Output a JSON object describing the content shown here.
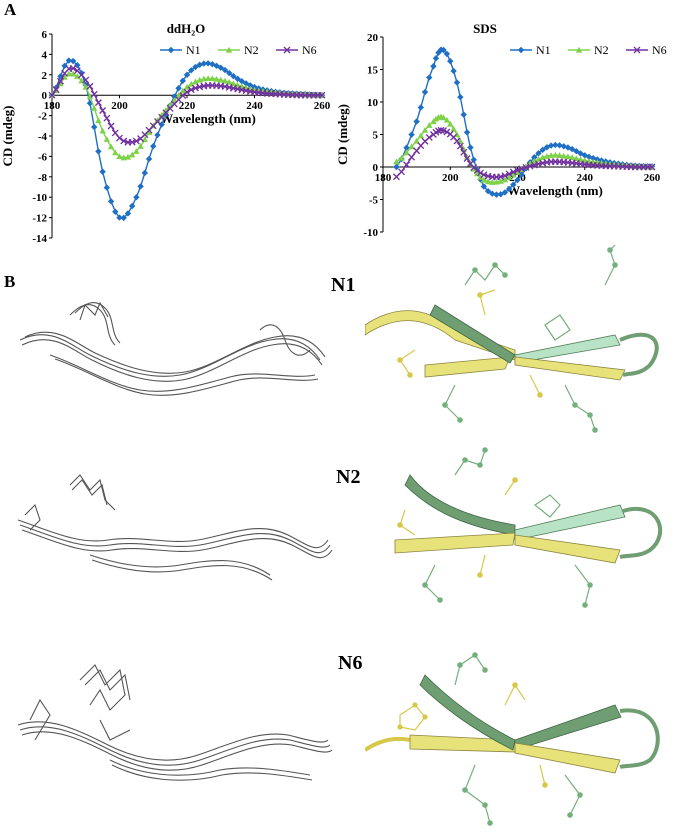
{
  "panels": {
    "a": "A",
    "b": "B"
  },
  "chart_data": [
    {
      "type": "line",
      "title": "ddH₂O",
      "xlabel": "Wavelength (nm)",
      "ylabel": "CD (mdeg)",
      "xlim": [
        180,
        260
      ],
      "ylim": [
        -14,
        6
      ],
      "xticks": [
        "180",
        "200",
        "220",
        "240",
        "260"
      ],
      "yticks": [
        "-14",
        "-12",
        "-10",
        "-8",
        "-6",
        "-4",
        "-2",
        "0",
        "2",
        "4",
        "6"
      ],
      "legend": "top-right",
      "series": [
        {
          "name": "N1",
          "color": "#1f6fc5",
          "marker": "diamond",
          "x": [
            180,
            185,
            190,
            195,
            200,
            205,
            210,
            215,
            220,
            225,
            230,
            235,
            240,
            245,
            250,
            255,
            260
          ],
          "y": [
            0,
            3.4,
            1.0,
            -7.5,
            -12.0,
            -10.0,
            -5.0,
            -1.0,
            2.0,
            3.1,
            2.7,
            1.6,
            0.8,
            0.4,
            0.2,
            0.1,
            0
          ]
        },
        {
          "name": "N2",
          "color": "#7ed24a",
          "marker": "triangle",
          "x": [
            180,
            185,
            190,
            195,
            200,
            205,
            210,
            215,
            220,
            225,
            230,
            235,
            240,
            245,
            250,
            255,
            260
          ],
          "y": [
            0,
            2.1,
            0.8,
            -3.5,
            -6.0,
            -5.5,
            -3.0,
            -1.0,
            0.8,
            1.6,
            1.5,
            1.0,
            0.5,
            0.3,
            0.1,
            0.05,
            0
          ]
        },
        {
          "name": "N6",
          "color": "#7030a0",
          "marker": "x",
          "x": [
            180,
            185,
            190,
            195,
            200,
            205,
            210,
            215,
            220,
            225,
            230,
            235,
            240,
            245,
            250,
            255,
            260
          ],
          "y": [
            0,
            2.6,
            1.5,
            -1.5,
            -4.2,
            -4.5,
            -3.0,
            -1.3,
            0.3,
            0.9,
            0.9,
            0.6,
            0.3,
            0.15,
            0.05,
            0,
            0
          ]
        }
      ]
    },
    {
      "type": "line",
      "title": "SDS",
      "xlabel": "Wavelength (nm)",
      "ylabel": "CD (mdeg)",
      "xlim": [
        180,
        260
      ],
      "ylim": [
        -10,
        20
      ],
      "xticks": [
        "180",
        "200",
        "220",
        "240",
        "260"
      ],
      "yticks": [
        "-10",
        "-5",
        "0",
        "5",
        "10",
        "15",
        "20"
      ],
      "legend": "top-right",
      "series": [
        {
          "name": "N1",
          "color": "#1f6fc5",
          "marker": "diamond",
          "x": [
            184,
            190,
            195,
            198,
            202,
            206,
            210,
            215,
            220,
            225,
            230,
            235,
            240,
            245,
            250,
            255,
            260
          ],
          "y": [
            0,
            7.0,
            15.5,
            18.0,
            13.0,
            3.0,
            -3.0,
            -4.2,
            -2.0,
            1.5,
            3.3,
            3.0,
            1.8,
            1.0,
            0.5,
            0.2,
            0.1
          ]
        },
        {
          "name": "N2",
          "color": "#7ed24a",
          "marker": "triangle",
          "x": [
            184,
            190,
            195,
            198,
            202,
            206,
            210,
            215,
            220,
            225,
            230,
            235,
            240,
            245,
            250,
            255,
            260
          ],
          "y": [
            0.8,
            4.0,
            7.0,
            7.6,
            5.0,
            0.5,
            -2.0,
            -2.2,
            -0.8,
            0.9,
            1.8,
            1.6,
            1.0,
            0.6,
            0.3,
            0.1,
            0
          ]
        },
        {
          "name": "N6",
          "color": "#7030a0",
          "marker": "x",
          "x": [
            184,
            190,
            195,
            198,
            202,
            206,
            210,
            215,
            220,
            225,
            230,
            235,
            240,
            245,
            250,
            255,
            260
          ],
          "y": [
            -1.5,
            2.5,
            5.0,
            5.6,
            4.0,
            0.5,
            -1.2,
            -1.5,
            -0.5,
            0.3,
            0.8,
            0.7,
            0.4,
            0.2,
            0.1,
            0,
            0
          ]
        }
      ]
    }
  ],
  "structures": {
    "n1_label": "N1",
    "n2_label": "N2",
    "n6_label": "N6",
    "palette": {
      "wire": "#555555",
      "ribbon_yellow": "#e8e27a",
      "ribbon_green": "#6f9e72",
      "ribbon_mint": "#b9e3c6",
      "atom_yellow": "#d8c84a",
      "atom_green": "#74b07c"
    }
  }
}
